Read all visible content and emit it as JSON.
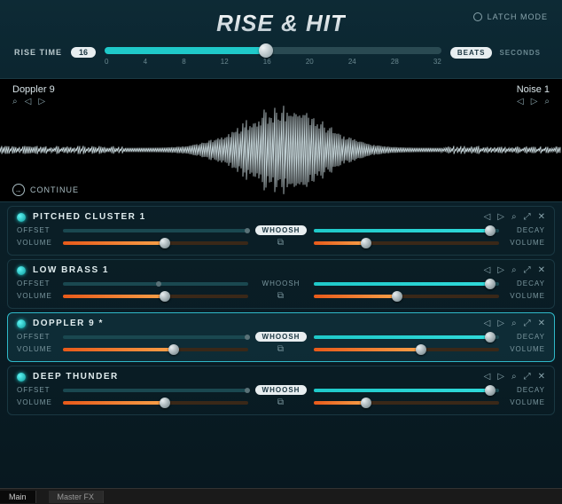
{
  "header": {
    "title": "RISE & HIT",
    "latch_label": "LATCH MODE",
    "rise_label": "RISE TIME",
    "rise_value": "16",
    "ruler_labels": [
      "0",
      "4",
      "8",
      "12",
      "16",
      "20",
      "24",
      "28",
      "32"
    ],
    "ruler_fill_pct": 48,
    "mode_beats": "BEATS",
    "mode_seconds": "SECONDS"
  },
  "waveform": {
    "left_name": "Doppler 9",
    "right_name": "Noise 1",
    "continue_label": "CONTINUE"
  },
  "layers": [
    {
      "name": "PITCHED CLUSTER 1",
      "selected": false,
      "offset_pct": 98,
      "decay_pct": 95,
      "vol_l_pct": 55,
      "vol_r_pct": 28,
      "whoosh_active": true
    },
    {
      "name": "LOW BRASS 1",
      "selected": false,
      "offset_pct": 50,
      "decay_pct": 95,
      "vol_l_pct": 55,
      "vol_r_pct": 45,
      "whoosh_active": false
    },
    {
      "name": "DOPPLER 9 *",
      "selected": true,
      "offset_pct": 98,
      "decay_pct": 95,
      "vol_l_pct": 60,
      "vol_r_pct": 58,
      "whoosh_active": true
    },
    {
      "name": "DEEP THUNDER",
      "selected": false,
      "offset_pct": 98,
      "decay_pct": 95,
      "vol_l_pct": 55,
      "vol_r_pct": 28,
      "whoosh_active": true
    }
  ],
  "labels": {
    "offset": "OFFSET",
    "decay": "DECAY",
    "volume": "VOLUME",
    "whoosh": "WHOOSH"
  },
  "footer": {
    "tab_main": "Main",
    "tab_fx": "Master FX"
  },
  "colors": {
    "accent": "#1fc9c9",
    "orange": "#e85a1a",
    "bg": "#0a1f28"
  }
}
